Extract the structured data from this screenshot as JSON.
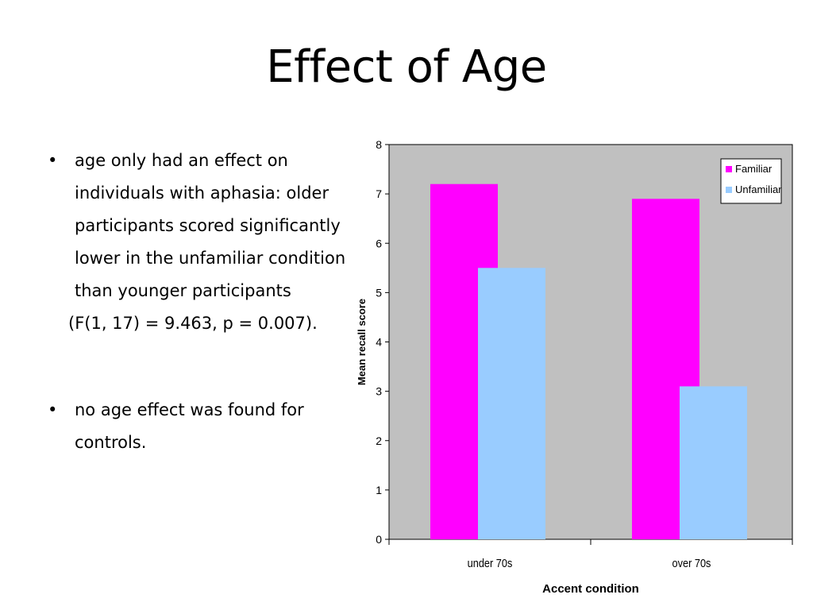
{
  "slide": {
    "title": "Effect of Age",
    "bullets": [
      {
        "marker": "•",
        "text": "age only had an effect on individuals with aphasia: older participants scored significantly lower in the unfamiliar condition than younger participants",
        "stat": "(F(1, 17) = 9.463, p = 0.007)."
      },
      {
        "marker": "•",
        "text": "no age effect was found for controls."
      }
    ]
  },
  "chart_data": {
    "type": "bar",
    "categories": [
      "under 70s",
      "over 70s"
    ],
    "series": [
      {
        "name": "Familiar",
        "values": [
          7.2,
          6.9
        ],
        "color": "#ff00ff"
      },
      {
        "name": "Unfamiliar",
        "values": [
          5.5,
          3.1
        ],
        "color": "#99ccff"
      }
    ],
    "xlabel": "Accent condition",
    "ylabel": "Mean recall score",
    "ylim": [
      0,
      8
    ],
    "yticks": [
      "0",
      "1",
      "2",
      "3",
      "4",
      "5",
      "6",
      "7",
      "8"
    ],
    "plot_background": "#c0c0c0",
    "grid": false,
    "legend_position": "top-right"
  }
}
